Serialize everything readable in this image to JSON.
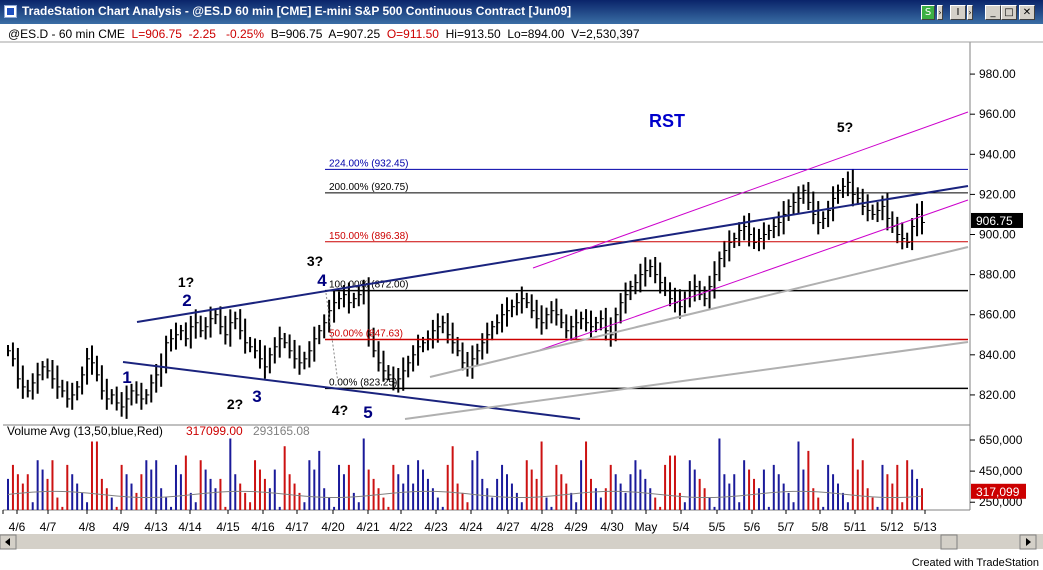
{
  "window": {
    "title": "TradeStation Chart Analysis - @ES.D  60 min  [CME] E-mini S&P 500 Continuous Contract [Jun09]",
    "tool_buttons": [
      "S",
      "I"
    ],
    "controls": [
      "minimize",
      "maximize",
      "close"
    ]
  },
  "info": {
    "symbol": "@ES.D - 60 min  CME",
    "last": "L=906.75",
    "change": "-2.25",
    "change_pct": "-0.25%",
    "bid": "B=906.75",
    "ask": "A=907.25",
    "open": "O=911.50",
    "high": "Hi=913.50",
    "low": "Lo=894.00",
    "volume": "V=2,530,397"
  },
  "chart_data": {
    "type": "bar",
    "title": "",
    "xlabel": "",
    "ylabel": "",
    "ylim": [
      806,
      996
    ],
    "price_ticks": [
      "980.00",
      "960.00",
      "940.00",
      "920.00",
      "900.00",
      "880.00",
      "860.00",
      "840.00",
      "820.00"
    ],
    "last_price_label": "906.75",
    "x_labels": [
      "4/6",
      "4/7",
      "4/8",
      "4/9",
      "4/13",
      "4/14",
      "4/15",
      "4/16",
      "4/17",
      "4/20",
      "4/21",
      "4/22",
      "4/23",
      "4/24",
      "4/27",
      "4/28",
      "4/29",
      "4/30",
      "May",
      "5/4",
      "5/5",
      "5/6",
      "5/7",
      "5/8",
      "5/11",
      "5/12",
      "5/13"
    ],
    "fib_levels": [
      {
        "label": "224.00% (932.45)",
        "value": 932.45,
        "color": "#0000aa"
      },
      {
        "label": "200.00% (920.75)",
        "value": 920.75,
        "color": "#000000"
      },
      {
        "label": "150.00% (896.38)",
        "value": 896.38,
        "color": "#cc0000"
      },
      {
        "label": "100.00% (872.00)",
        "value": 872.0,
        "color": "#000000"
      },
      {
        "label": "50.00% (847.63)",
        "value": 847.63,
        "color": "#cc0000"
      },
      {
        "label": "0.00% (823.25)",
        "value": 823.25,
        "color": "#000000"
      }
    ],
    "wave_labels": [
      {
        "text": "1",
        "color": "#000080"
      },
      {
        "text": "2",
        "color": "#000080"
      },
      {
        "text": "1?",
        "color": "#000000"
      },
      {
        "text": "3",
        "color": "#000080"
      },
      {
        "text": "2?",
        "color": "#000000"
      },
      {
        "text": "4",
        "color": "#000080"
      },
      {
        "text": "3?",
        "color": "#000000"
      },
      {
        "text": "5",
        "color": "#000080"
      },
      {
        "text": "4?",
        "color": "#000000"
      },
      {
        "text": "5?",
        "color": "#000000"
      },
      {
        "text": "RST",
        "color": "#0000cc"
      }
    ],
    "volume": {
      "label": "Volume Avg (13,50,blue,Red)",
      "value1": "317099.00",
      "value2": "293165.08",
      "ticks": [
        "650,000",
        "450,000",
        "250,000"
      ],
      "last_label": "317,099"
    }
  },
  "footer": {
    "credit": "Created with TradeStation"
  }
}
